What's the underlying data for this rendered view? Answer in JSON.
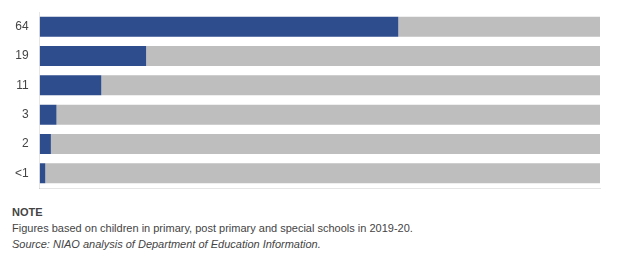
{
  "chart_data": {
    "type": "bar",
    "orientation": "horizontal",
    "stacked": true,
    "categories": [
      "64",
      "19",
      "11",
      "3",
      "2",
      "<1"
    ],
    "series": [
      {
        "color": "#2E4D8C",
        "values": [
          64,
          19,
          11,
          3,
          2,
          1
        ]
      },
      {
        "color": "#BEBEBE",
        "values": [
          36,
          81,
          89,
          97,
          98,
          99
        ]
      }
    ],
    "xlim": [
      0,
      100
    ],
    "grid": false,
    "tick_labels": "y",
    "annotations": [
      "NOTE",
      "Figures based on children in primary, post primary and special schools in 2019-20.",
      "Source: NIAO analysis of Department of Education Information."
    ]
  }
}
